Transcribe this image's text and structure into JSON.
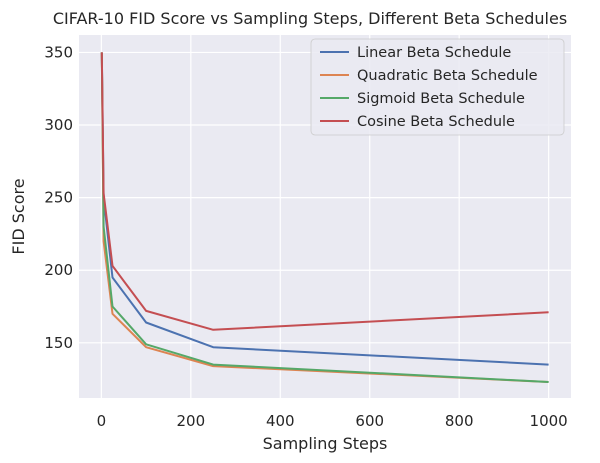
{
  "chart_data": {
    "type": "line",
    "title": "CIFAR-10 FID Score vs Sampling Steps, Different Beta Schedules",
    "xlabel": "Sampling Steps",
    "ylabel": "FID Score",
    "xlim": [
      -50,
      1050
    ],
    "ylim": [
      112,
      362
    ],
    "xticks": [
      0,
      200,
      400,
      600,
      800,
      1000
    ],
    "yticks": [
      150,
      200,
      250,
      300,
      350
    ],
    "grid": true,
    "legend_position": "top-right",
    "series": [
      {
        "name": "Linear Beta Schedule",
        "color": "#4c72b0",
        "x": [
          1,
          5,
          25,
          100,
          250,
          1000
        ],
        "y": [
          350,
          250,
          195,
          164,
          147,
          135
        ]
      },
      {
        "name": "Quadratic Beta Schedule",
        "color": "#dd8452",
        "x": [
          1,
          5,
          25,
          100,
          250,
          1000
        ],
        "y": [
          350,
          220,
          170,
          147,
          134,
          123
        ]
      },
      {
        "name": "Sigmoid Beta Schedule",
        "color": "#55a868",
        "x": [
          1,
          5,
          25,
          100,
          250,
          1000
        ],
        "y": [
          350,
          230,
          175,
          149,
          135,
          123
        ]
      },
      {
        "name": "Cosine Beta Schedule",
        "color": "#c44e52",
        "x": [
          1,
          5,
          25,
          100,
          250,
          1000
        ],
        "y": [
          350,
          253,
          203,
          172,
          159,
          171
        ]
      }
    ]
  }
}
